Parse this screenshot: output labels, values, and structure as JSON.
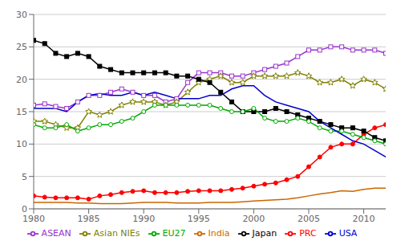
{
  "chart_data": {
    "type": "line",
    "x": [
      1980,
      1981,
      1982,
      1983,
      1984,
      1985,
      1986,
      1987,
      1988,
      1989,
      1990,
      1991,
      1992,
      1993,
      1994,
      1995,
      1996,
      1997,
      1998,
      1999,
      2000,
      2001,
      2002,
      2003,
      2004,
      2005,
      2006,
      2007,
      2008,
      2009,
      2010,
      2011,
      2012
    ],
    "series": [
      {
        "name": "ASEAN",
        "color": "#9933cc",
        "marker": "open_square",
        "values": [
          16.0,
          16.2,
          15.8,
          15.5,
          16.5,
          17.5,
          17.5,
          18.0,
          18.5,
          18.0,
          17.5,
          17.5,
          16.5,
          17.0,
          19.5,
          21.0,
          21.0,
          21.0,
          20.5,
          20.5,
          21.0,
          21.5,
          22.0,
          22.5,
          23.5,
          24.5,
          24.5,
          25.0,
          25.0,
          24.5,
          24.5,
          24.5,
          24.0
        ]
      },
      {
        "name": "Asian NIEs",
        "color": "#808000",
        "marker": "open_star",
        "values": [
          13.5,
          13.5,
          13.0,
          12.5,
          12.5,
          15.0,
          14.5,
          15.0,
          16.0,
          16.5,
          16.5,
          16.5,
          16.0,
          16.5,
          18.0,
          19.5,
          20.0,
          20.5,
          19.5,
          19.5,
          20.5,
          20.5,
          20.5,
          20.5,
          21.0,
          20.5,
          19.5,
          19.5,
          20.0,
          19.0,
          20.0,
          19.5,
          18.5
        ]
      },
      {
        "name": "PRC",
        "color": "#ff0000",
        "marker": "circle",
        "values": [
          2.0,
          1.8,
          1.7,
          1.7,
          1.7,
          1.5,
          2.0,
          2.2,
          2.5,
          2.7,
          2.8,
          2.5,
          2.5,
          2.5,
          2.7,
          2.8,
          2.8,
          2.8,
          3.0,
          3.2,
          3.5,
          3.8,
          4.0,
          4.5,
          5.0,
          6.5,
          8.0,
          9.5,
          10.0,
          10.0,
          11.5,
          12.5,
          13.0
        ]
      },
      {
        "name": "Japan",
        "color": "#000000",
        "marker": "square",
        "values": [
          26.0,
          25.5,
          24.0,
          23.5,
          24.0,
          23.5,
          22.0,
          21.5,
          21.0,
          21.0,
          21.0,
          21.0,
          21.0,
          20.5,
          20.5,
          20.0,
          19.5,
          18.0,
          16.5,
          15.0,
          15.0,
          15.0,
          15.5,
          15.0,
          14.5,
          14.0,
          13.5,
          13.0,
          12.5,
          12.5,
          12.0,
          11.0,
          10.5
        ]
      },
      {
        "name": "EU27",
        "color": "#00aa00",
        "marker": "open_circle",
        "values": [
          13.0,
          12.5,
          12.5,
          13.0,
          12.0,
          12.5,
          13.0,
          13.0,
          13.5,
          14.0,
          15.0,
          16.0,
          16.0,
          16.0,
          16.0,
          16.0,
          16.0,
          15.5,
          15.0,
          15.0,
          15.5,
          14.0,
          13.5,
          13.5,
          14.0,
          13.5,
          12.5,
          12.0,
          12.0,
          11.5,
          11.0,
          10.5,
          10.0
        ]
      },
      {
        "name": "USA",
        "color": "#0000cc",
        "marker": "none",
        "values": [
          15.5,
          15.5,
          15.5,
          15.0,
          16.5,
          17.5,
          17.8,
          17.5,
          17.5,
          18.0,
          17.5,
          18.0,
          17.5,
          17.0,
          17.0,
          17.0,
          17.5,
          17.5,
          18.5,
          19.0,
          19.0,
          17.5,
          16.5,
          16.0,
          15.5,
          15.0,
          13.5,
          12.5,
          11.5,
          10.5,
          10.0,
          9.0,
          8.0
        ]
      },
      {
        "name": "India",
        "color": "#cc6600",
        "marker": "none",
        "values": [
          1.0,
          1.0,
          1.0,
          1.0,
          0.9,
          0.9,
          0.8,
          0.8,
          0.8,
          0.9,
          1.0,
          1.0,
          1.0,
          0.9,
          0.9,
          0.9,
          1.0,
          1.0,
          1.0,
          1.1,
          1.2,
          1.3,
          1.4,
          1.5,
          1.7,
          2.0,
          2.3,
          2.5,
          2.8,
          2.7,
          3.0,
          3.2,
          3.2
        ]
      }
    ],
    "xlim": [
      1980,
      2012
    ],
    "xticks": [
      1980,
      1985,
      1990,
      1995,
      2000,
      2005,
      2010
    ],
    "ylim": [
      0,
      30
    ],
    "yticks": [
      0,
      5,
      10,
      15,
      20,
      25,
      30
    ],
    "grid": "y",
    "legend": "bottom"
  }
}
